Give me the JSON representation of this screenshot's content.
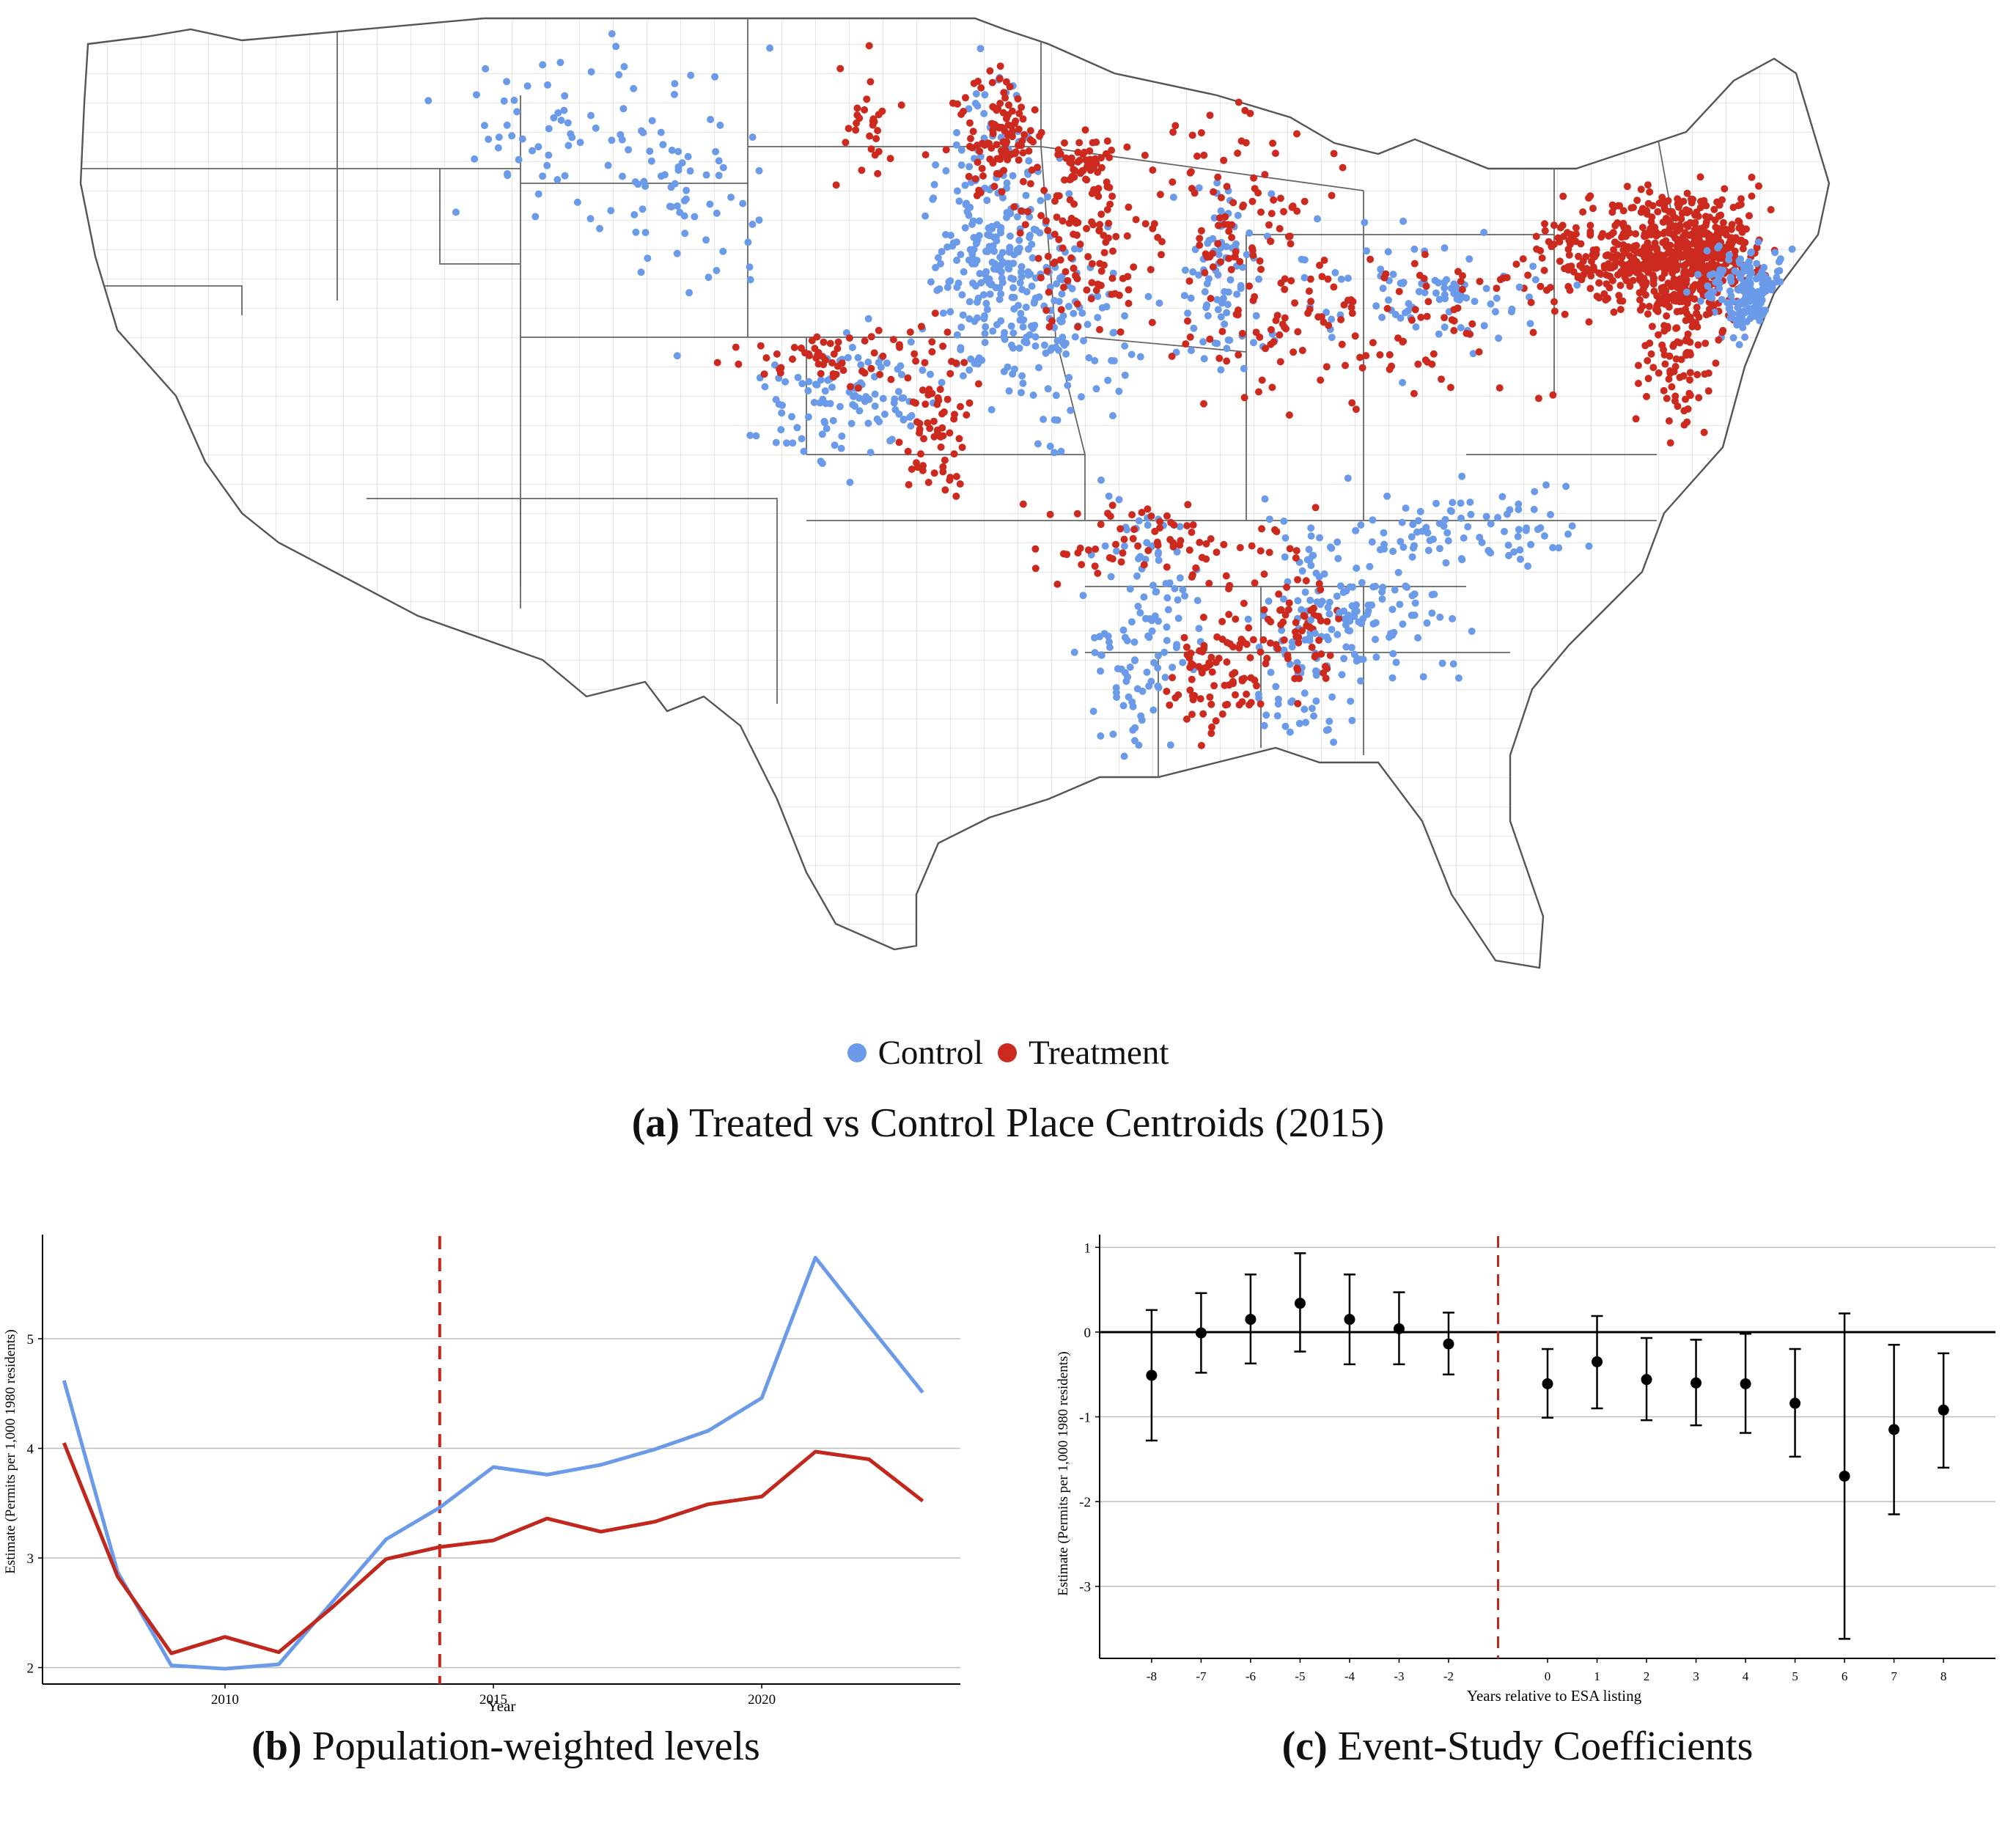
{
  "legend": {
    "control_label": "Control",
    "treatment_label": "Treatment",
    "control_color": "#6b9be8",
    "treatment_color": "#cc2a1f"
  },
  "captions": {
    "a_letter": "(a)",
    "a_text": "Treated vs Control Place Centroids (2015)",
    "b_letter": "(b)",
    "b_text": "Population-weighted levels",
    "c_letter": "(c)",
    "c_text": "Event-Study Coefficients"
  },
  "chart_data": [
    {
      "type": "scatter",
      "panel": "a",
      "title": "Treated vs Control Place Centroids (2015)",
      "legend_position": "bottom",
      "series": [
        {
          "name": "Control",
          "color": "#6b9be8"
        },
        {
          "name": "Treatment",
          "color": "#cc2a1f"
        }
      ],
      "basemap": "US counties (contiguous states)"
    },
    {
      "type": "line",
      "panel": "b",
      "title": "Population-weighted levels",
      "xlabel": "Year",
      "ylabel": "Estimate (Permits per 1,000 1980 residents)",
      "x": [
        2007,
        2008,
        2009,
        2010,
        2011,
        2012,
        2013,
        2014,
        2015,
        2016,
        2017,
        2018,
        2019,
        2020,
        2021,
        2022,
        2023
      ],
      "xticks": [
        2010,
        2015,
        2020
      ],
      "yticks": [
        2,
        3,
        4,
        5
      ],
      "xlim": [
        2006.6,
        2023.7
      ],
      "ylim": [
        1.85,
        5.95
      ],
      "grid": "horizontal",
      "vline": 2014,
      "series": [
        {
          "color": "#6b9be8",
          "values": [
            4.62,
            2.87,
            2.02,
            1.99,
            2.03,
            2.6,
            3.17,
            3.46,
            3.83,
            3.76,
            3.85,
            3.99,
            4.16,
            4.46,
            5.74,
            5.12,
            4.51
          ]
        },
        {
          "color": "#c1281d",
          "values": [
            4.05,
            2.83,
            2.13,
            2.28,
            2.14,
            2.55,
            2.99,
            3.1,
            3.16,
            3.36,
            3.24,
            3.33,
            3.49,
            3.56,
            3.97,
            3.9,
            3.52
          ]
        }
      ]
    },
    {
      "type": "scatter",
      "panel": "c",
      "title": "Event-Study Coefficients",
      "xlabel": "Years relative to ESA listing",
      "ylabel": "Estimate (Permits per 1,000 1980 residents)",
      "x": [
        -8,
        -7,
        -6,
        -5,
        -4,
        -3,
        -2,
        0,
        1,
        2,
        3,
        4,
        5,
        6,
        7,
        8
      ],
      "values": [
        -0.51,
        -0.01,
        0.15,
        0.34,
        0.15,
        0.04,
        -0.14,
        -0.61,
        -0.35,
        -0.56,
        -0.6,
        -0.61,
        -0.84,
        -1.7,
        -1.15,
        -0.92
      ],
      "ci_low": [
        -1.28,
        -0.48,
        -0.37,
        -0.23,
        -0.38,
        -0.38,
        -0.5,
        -1.01,
        -0.9,
        -1.04,
        -1.1,
        -1.19,
        -1.47,
        -3.62,
        -2.15,
        -1.6
      ],
      "ci_high": [
        0.26,
        0.46,
        0.68,
        0.93,
        0.68,
        0.47,
        0.23,
        -0.2,
        0.19,
        -0.07,
        -0.09,
        -0.02,
        -0.2,
        0.22,
        -0.15,
        -0.25
      ],
      "xticks": [
        -8,
        -7,
        -6,
        -5,
        -4,
        -3,
        -2,
        0,
        1,
        2,
        3,
        4,
        5,
        6,
        7,
        8
      ],
      "yticks": [
        1,
        0,
        -1,
        -2,
        -3
      ],
      "xlim": [
        -9.05,
        9.05
      ],
      "ylim": [
        -3.85,
        1.15
      ],
      "grid": "horizontal",
      "vline": -1,
      "hline": 0
    }
  ]
}
